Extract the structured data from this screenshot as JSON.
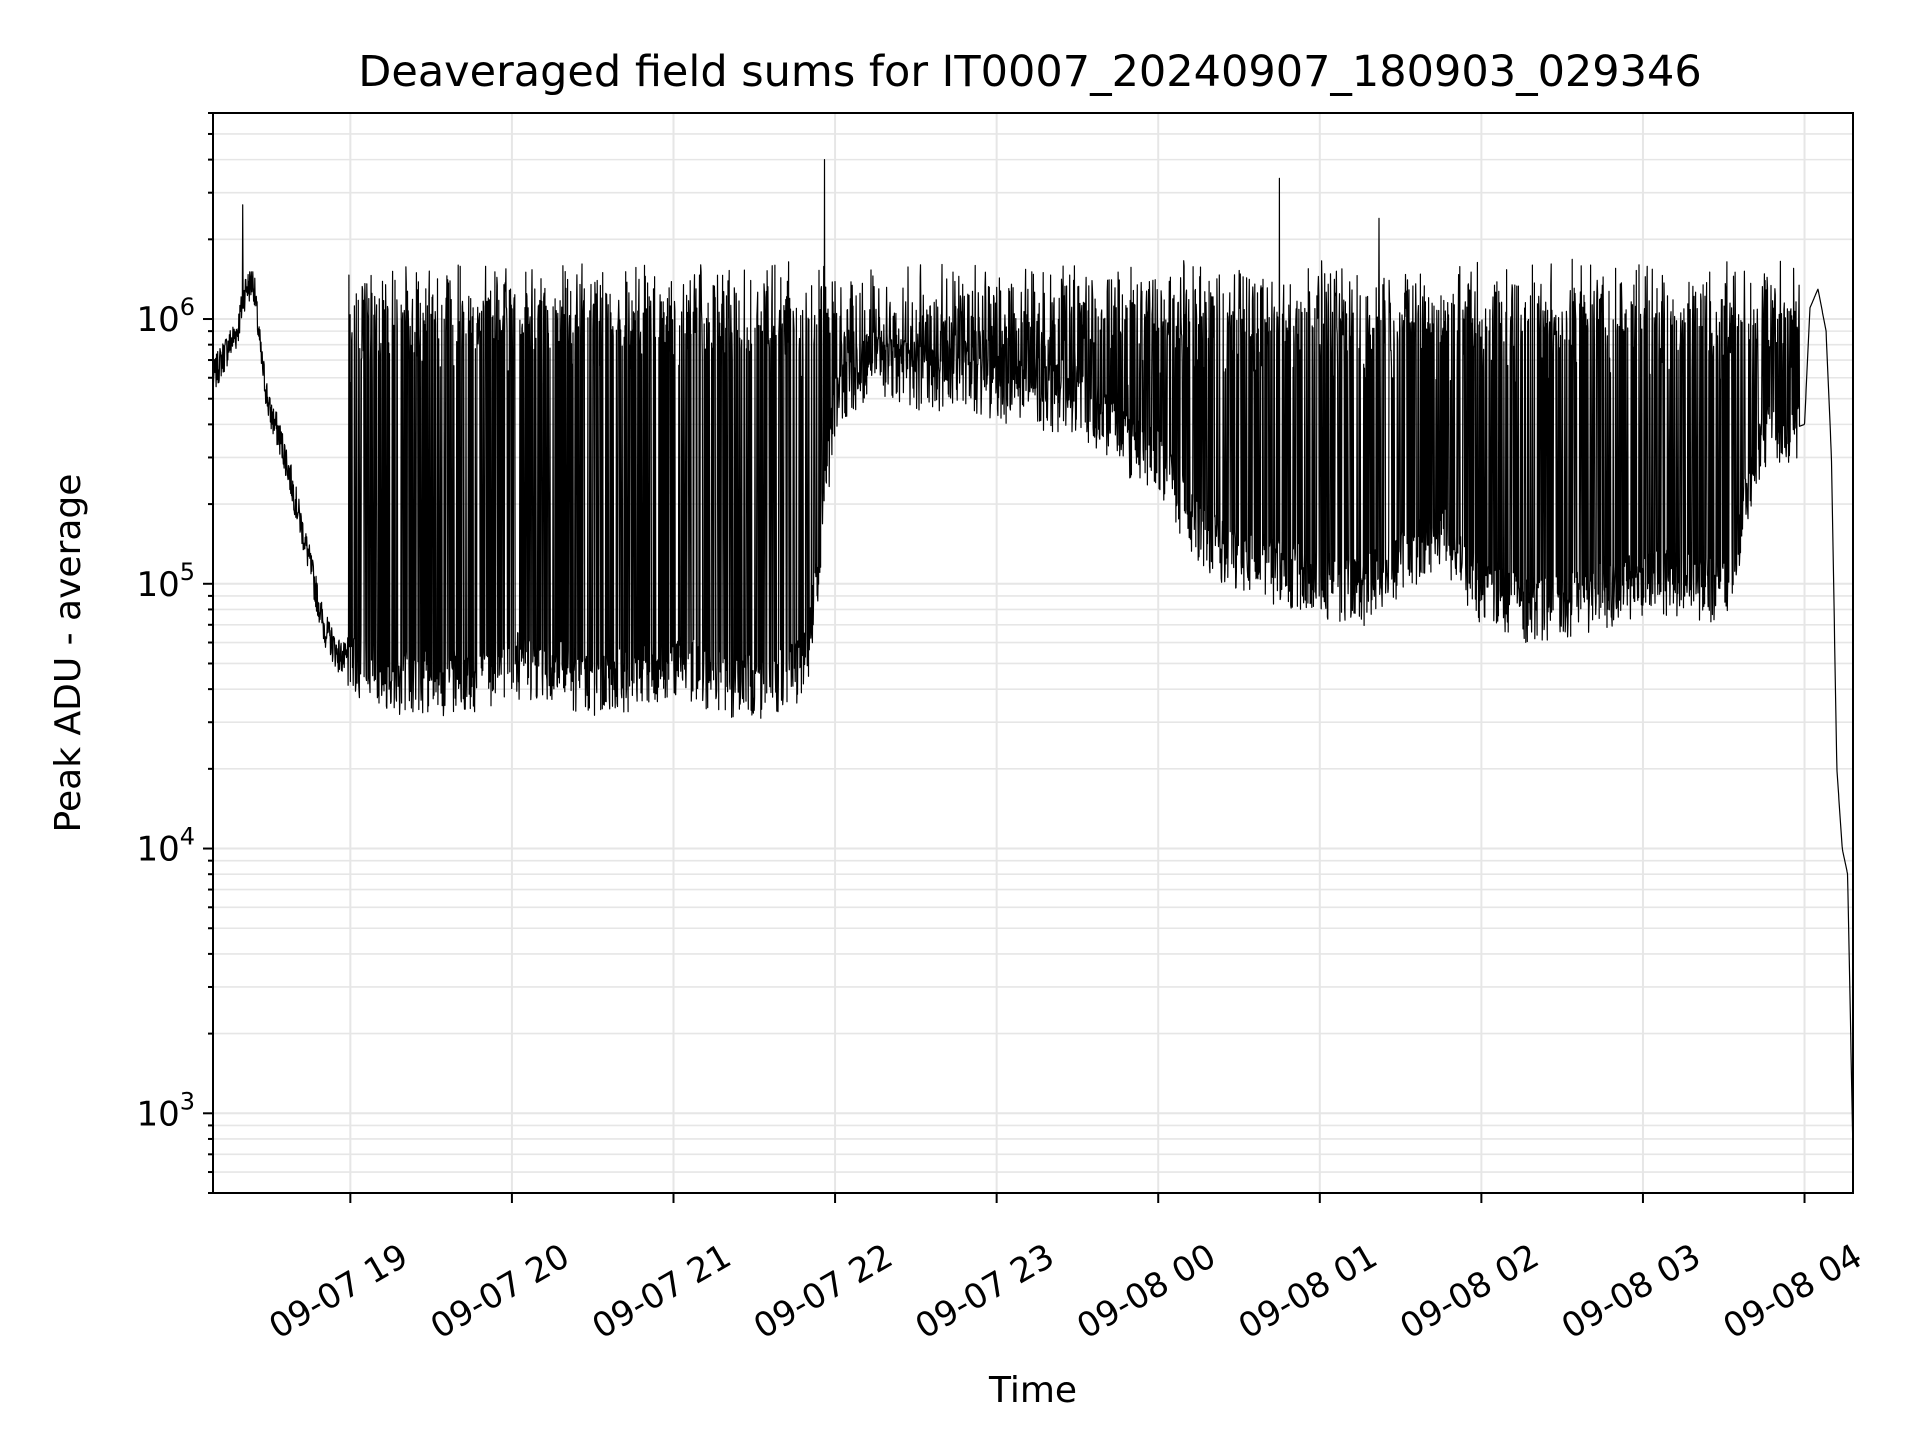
{
  "chart_data": {
    "type": "line",
    "title": "Deaveraged field sums for IT0007_20240907_180903_029346",
    "xlabel": "Time",
    "ylabel": "Peak ADU - average",
    "yscale": "log",
    "ylim": [
      500,
      6000000
    ],
    "xlim": [
      "09-07 18:09",
      "09-08 04:18"
    ],
    "grid": true,
    "line_color": "#000000",
    "grid_color": "#e6e6e6",
    "x_ticks": [
      {
        "label": "09-07 19",
        "value": "09-07 19:00"
      },
      {
        "label": "09-07 20",
        "value": "09-07 20:00"
      },
      {
        "label": "09-07 21",
        "value": "09-07 21:00"
      },
      {
        "label": "09-07 22",
        "value": "09-07 22:00"
      },
      {
        "label": "09-07 23",
        "value": "09-07 23:00"
      },
      {
        "label": "09-08 00",
        "value": "09-08 00:00"
      },
      {
        "label": "09-08 01",
        "value": "09-08 01:00"
      },
      {
        "label": "09-08 02",
        "value": "09-08 02:00"
      },
      {
        "label": "09-08 03",
        "value": "09-08 03:00"
      },
      {
        "label": "09-08 04",
        "value": "09-08 04:00"
      }
    ],
    "y_ticks": [
      {
        "base": "10",
        "exp": "3",
        "value": 1000
      },
      {
        "base": "10",
        "exp": "4",
        "value": 10000
      },
      {
        "base": "10",
        "exp": "5",
        "value": 100000
      },
      {
        "base": "10",
        "exp": "6",
        "value": 1000000
      }
    ],
    "series": [
      {
        "x": [
          "09-07 18:09",
          "09-07 18:12",
          "09-07 18:15",
          "09-07 18:18",
          "09-07 18:21",
          "09-07 18:24",
          "09-07 18:27",
          "09-07 18:30",
          "09-07 18:33",
          "09-07 18:36",
          "09-07 18:40",
          "09-07 18:45",
          "09-07 18:50",
          "09-07 18:55",
          "09-07 19:00",
          "09-07 19:10",
          "09-07 19:20",
          "09-07 19:30",
          "09-07 19:40",
          "09-07 19:50",
          "09-07 20:00",
          "09-07 20:10",
          "09-07 20:20",
          "09-07 20:30",
          "09-07 20:40",
          "09-07 20:50",
          "09-07 21:00",
          "09-07 21:10",
          "09-07 21:20",
          "09-07 21:30",
          "09-07 21:40",
          "09-07 21:50",
          "09-07 22:00",
          "09-07 22:15",
          "09-07 22:30",
          "09-07 22:45",
          "09-07 23:00",
          "09-07 23:15",
          "09-07 23:30",
          "09-07 23:45",
          "09-08 00:00",
          "09-08 00:15",
          "09-08 00:30",
          "09-08 00:45",
          "09-08 01:00",
          "09-08 01:15",
          "09-08 01:30",
          "09-08 01:45",
          "09-08 02:00",
          "09-08 02:15",
          "09-08 02:30",
          "09-08 02:45",
          "09-08 03:00",
          "09-08 03:15",
          "09-08 03:30",
          "09-08 03:45",
          "09-08 04:00",
          "09-08 04:02",
          "09-08 04:05",
          "09-08 04:08",
          "09-08 04:10",
          "09-08 04:12",
          "09-08 04:14",
          "09-08 04:16",
          "09-08 04:18"
        ],
        "y": [
          600000,
          700000,
          800000,
          900000,
          1300000,
          1400000,
          700000,
          450000,
          380000,
          300000,
          200000,
          120000,
          70000,
          55000,
          50000,
          45000,
          42000,
          42000,
          42000,
          45000,
          50000,
          45000,
          45000,
          42000,
          42000,
          45000,
          48000,
          45000,
          42000,
          40000,
          42000,
          50000,
          500000,
          700000,
          600000,
          600000,
          550000,
          500000,
          500000,
          350000,
          300000,
          150000,
          120000,
          110000,
          100000,
          90000,
          120000,
          150000,
          90000,
          80000,
          80000,
          90000,
          100000,
          100000,
          90000,
          350000,
          400000,
          1100000,
          1300000,
          900000,
          300000,
          20000,
          10000,
          8000,
          700
        ]
      }
    ]
  }
}
